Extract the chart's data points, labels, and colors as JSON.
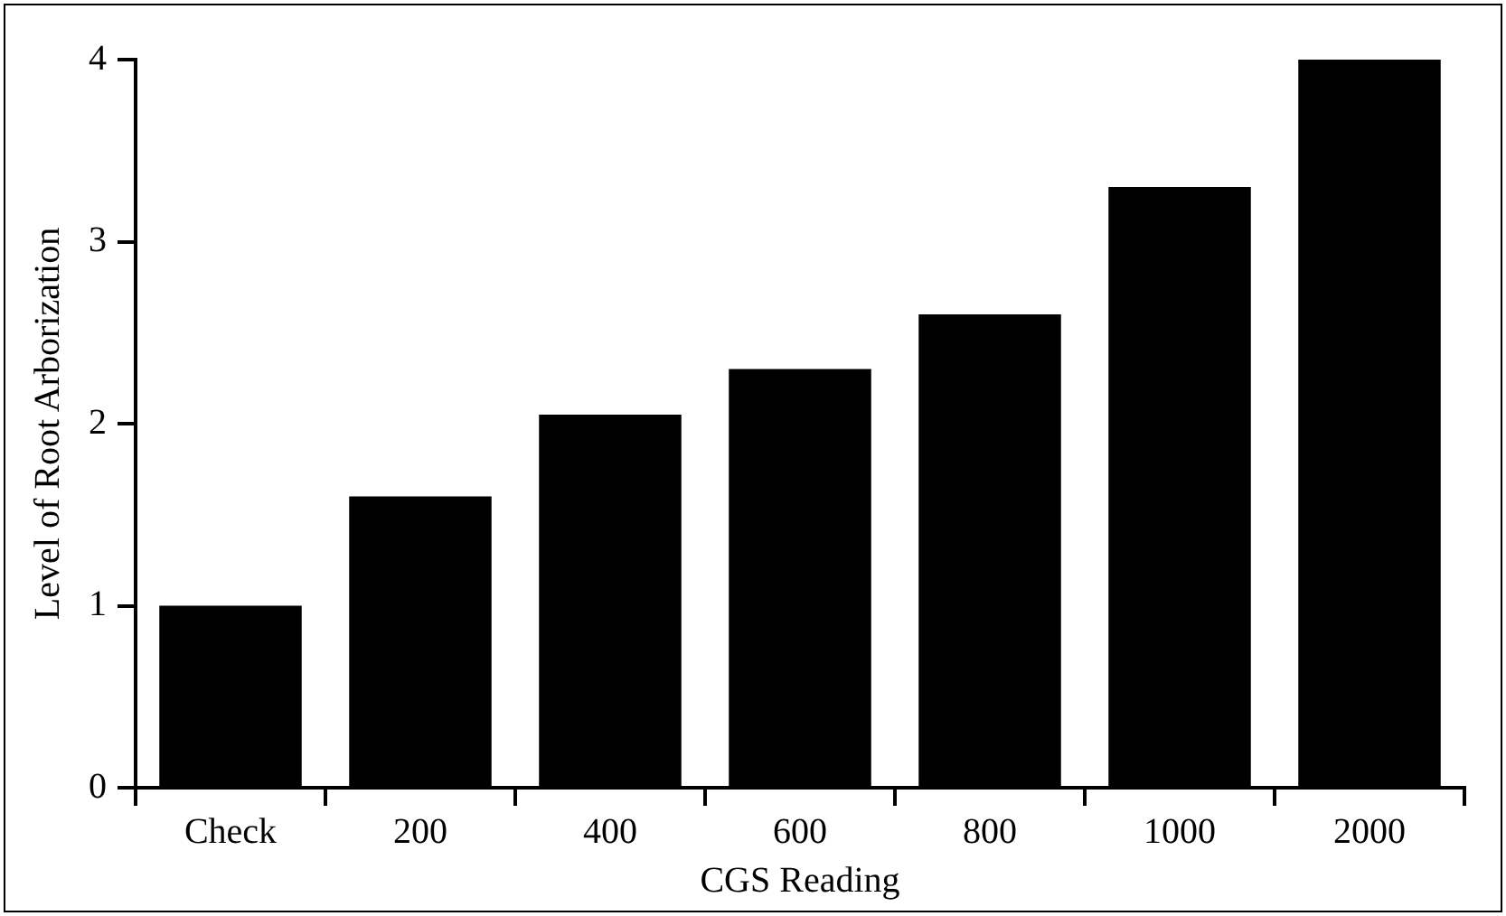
{
  "chart_data": {
    "type": "bar",
    "xlabel": "CGS Reading",
    "ylabel": "Level of Root Arborization",
    "categories": [
      "Check",
      "200",
      "400",
      "600",
      "800",
      "1000",
      "2000"
    ],
    "values": [
      1.0,
      1.6,
      2.05,
      2.3,
      2.6,
      3.3,
      4.0
    ],
    "color": "#000000",
    "ylim": [
      0,
      4
    ],
    "yticks": [
      0,
      1,
      2,
      3,
      4
    ],
    "grid": false,
    "legend": false
  }
}
